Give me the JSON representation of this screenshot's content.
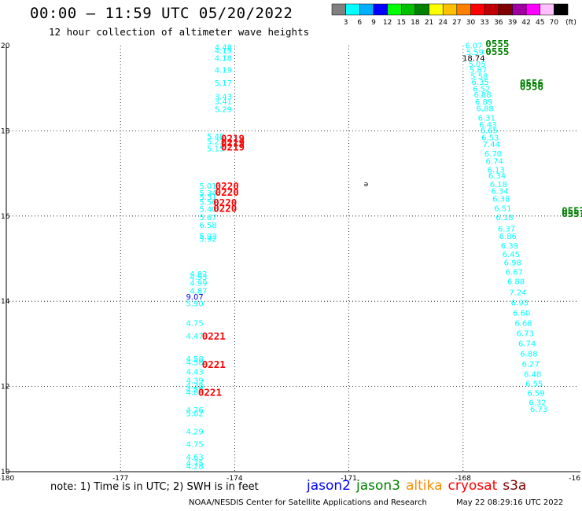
{
  "header": {
    "title": "00:00 — 11:59 UTC 05/20/2022",
    "subtitle": "12 hour collection of altimeter wave heights"
  },
  "colorbar": {
    "unit": "(ft)",
    "labels": [
      "3",
      "6",
      "9",
      "12",
      "15",
      "18",
      "21",
      "24",
      "27",
      "30",
      "33",
      "36",
      "39",
      "42",
      "45",
      "70"
    ],
    "colors": [
      "#808080",
      "#00ffff",
      "#00b0ff",
      "#0000ff",
      "#00ff00",
      "#00c000",
      "#008000",
      "#ffff00",
      "#ffc000",
      "#ff8000",
      "#ff0000",
      "#c00000",
      "#800000",
      "#a000a0",
      "#ff00ff",
      "#ffc0ff",
      "#000000"
    ]
  },
  "map": {
    "xaxis": {
      "ticks": [
        "-180",
        "-177",
        "-174",
        "-171",
        "-168",
        "-16"
      ]
    },
    "yaxis": {
      "ticks": [
        "20",
        "18",
        "16",
        "14",
        "12",
        "10"
      ]
    },
    "island_marker": "ə"
  },
  "chart_data": {
    "type": "scatter",
    "xlabel": "",
    "ylabel": "",
    "xlim": [
      -180,
      -165
    ],
    "ylim": [
      10,
      20
    ],
    "grid": true,
    "tracks": [
      {
        "color": "#00ffff",
        "lon": -174.3,
        "labels": [
          {
            "lat": 19.9,
            "v": "4.48"
          },
          {
            "lat": 19.82,
            "v": "4.19"
          },
          {
            "lat": 19.64,
            "v": "4.18"
          },
          {
            "lat": 19.36,
            "v": "4.19"
          },
          {
            "lat": 19.06,
            "v": "5.17"
          },
          {
            "lat": 18.74,
            "v": "3.43"
          },
          {
            "lat": 18.63,
            "v": "3.41"
          },
          {
            "lat": 18.44,
            "v": "5.29"
          }
        ]
      },
      {
        "color": "#00ffff",
        "lon": -174.5,
        "labels": [
          {
            "lat": 17.8,
            "v": "5.48"
          },
          {
            "lat": 17.68,
            "v": "5.23"
          },
          {
            "lat": 17.52,
            "v": "5.15"
          }
        ]
      },
      {
        "color": "#00ffff",
        "lon": -174.7,
        "labels": [
          {
            "lat": 16.64,
            "v": "5.01"
          },
          {
            "lat": 16.48,
            "v": "5.34"
          },
          {
            "lat": 16.38,
            "v": "5.31"
          },
          {
            "lat": 16.26,
            "v": "5.56"
          },
          {
            "lat": 16.1,
            "v": "5.40"
          },
          {
            "lat": 15.9,
            "v": "5.67"
          },
          {
            "lat": 15.72,
            "v": "6.58"
          },
          {
            "lat": 15.46,
            "v": "5.93"
          },
          {
            "lat": 15.4,
            "v": "5.92"
          }
        ]
      },
      {
        "color": "#00ffff",
        "lon": -174.95,
        "labels": [
          {
            "lat": 14.58,
            "v": "4.82"
          },
          {
            "lat": 14.5,
            "v": "4.93"
          },
          {
            "lat": 14.36,
            "v": "4.99"
          },
          {
            "lat": 14.18,
            "v": "4.87"
          }
        ]
      },
      {
        "color": "#0000ff",
        "lon": -175.05,
        "labels": [
          {
            "lat": 14.04,
            "v": "9.07"
          }
        ]
      },
      {
        "color": "#00ffff",
        "lon": -175.05,
        "labels": [
          {
            "lat": 13.88,
            "v": "5.90"
          },
          {
            "lat": 13.42,
            "v": "4.75"
          },
          {
            "lat": 13.12,
            "v": "4.47"
          },
          {
            "lat": 12.58,
            "v": "4.58"
          },
          {
            "lat": 12.5,
            "v": "4.58"
          },
          {
            "lat": 12.28,
            "v": "4.43"
          },
          {
            "lat": 12.08,
            "v": "4.39"
          },
          {
            "lat": 11.96,
            "v": "4.38"
          },
          {
            "lat": 11.86,
            "v": "4.58"
          },
          {
            "lat": 11.8,
            "v": "4.88"
          },
          {
            "lat": 11.38,
            "v": "4.76"
          },
          {
            "lat": 11.3,
            "v": "5.02"
          },
          {
            "lat": 10.88,
            "v": "4.29"
          },
          {
            "lat": 10.58,
            "v": "4.75"
          },
          {
            "lat": 10.28,
            "v": "4.63"
          },
          {
            "lat": 10.14,
            "v": "4.75"
          },
          {
            "lat": 10.06,
            "v": "4.28"
          }
        ]
      },
      {
        "color": "#00ffff",
        "lon": -167.72,
        "labels": [
          {
            "lat": 19.94,
            "v": "6.07"
          },
          {
            "lat": 19.78,
            "v": "5.59"
          },
          {
            "lat": 19.5,
            "v": "5.05"
          },
          {
            "lat": 19.36,
            "v": "5.87"
          },
          {
            "lat": 19.22,
            "v": "5.58"
          },
          {
            "lat": 19.08,
            "v": "6.35"
          },
          {
            "lat": 18.92,
            "v": "6.52"
          },
          {
            "lat": 18.78,
            "v": "6.88"
          },
          {
            "lat": 18.62,
            "v": "6.89"
          },
          {
            "lat": 18.46,
            "v": "6.88"
          },
          {
            "lat": 18.24,
            "v": "6.31"
          },
          {
            "lat": 18.08,
            "v": "6.43"
          },
          {
            "lat": 17.94,
            "v": "6.65"
          },
          {
            "lat": 17.78,
            "v": "6.53"
          },
          {
            "lat": 17.62,
            "v": "7.44"
          },
          {
            "lat": 17.4,
            "v": "6.70"
          },
          {
            "lat": 17.22,
            "v": "6.74"
          },
          {
            "lat": 17.02,
            "v": "6.13"
          },
          {
            "lat": 16.88,
            "v": "6.34"
          },
          {
            "lat": 16.68,
            "v": "6.18"
          },
          {
            "lat": 16.52,
            "v": "6.34"
          },
          {
            "lat": 16.34,
            "v": "6.38"
          },
          {
            "lat": 16.12,
            "v": "6.51"
          },
          {
            "lat": 15.9,
            "v": "6.18"
          },
          {
            "lat": 15.64,
            "v": "6.37"
          },
          {
            "lat": 15.46,
            "v": "6.86"
          },
          {
            "lat": 15.24,
            "v": "6.39"
          },
          {
            "lat": 15.04,
            "v": "6.45"
          },
          {
            "lat": 14.84,
            "v": "6.98"
          },
          {
            "lat": 14.62,
            "v": "6.67"
          },
          {
            "lat": 14.4,
            "v": "6.88"
          },
          {
            "lat": 14.14,
            "v": "7.24"
          },
          {
            "lat": 13.9,
            "v": "6.93"
          },
          {
            "lat": 13.66,
            "v": "6.60"
          },
          {
            "lat": 13.42,
            "v": "6.68"
          },
          {
            "lat": 13.18,
            "v": "6.73"
          },
          {
            "lat": 12.94,
            "v": "6.74"
          },
          {
            "lat": 12.7,
            "v": "6.88"
          },
          {
            "lat": 12.46,
            "v": "6.27"
          },
          {
            "lat": 12.22,
            "v": "6.48"
          },
          {
            "lat": 12.0,
            "v": "6.55"
          },
          {
            "lat": 11.78,
            "v": "6.59"
          },
          {
            "lat": 11.56,
            "v": "6.32"
          },
          {
            "lat": 11.4,
            "v": "6.73"
          }
        ]
      },
      {
        "color": "#000000",
        "lon": -167.78,
        "labels": [
          {
            "lat": 19.64,
            "v": "18.74"
          }
        ]
      }
    ],
    "passes": [
      {
        "name": "0555",
        "color": "#008000",
        "lon": -167.1,
        "lat": 19.96
      },
      {
        "name": "0555",
        "color": "#008000",
        "lon": -167.1,
        "lat": 19.78
      },
      {
        "name": "0556",
        "color": "#008000",
        "lon": -166.2,
        "lat": 19.04
      },
      {
        "name": "0556",
        "color": "#008000",
        "lon": -166.2,
        "lat": 18.96
      },
      {
        "name": "0557",
        "color": "#008000",
        "lon": -165.1,
        "lat": 16.04
      },
      {
        "name": "0557",
        "color": "#008000",
        "lon": -165.1,
        "lat": 15.98
      },
      {
        "name": "0219",
        "color": "#ff0000",
        "lon": -174.05,
        "lat": 17.74
      },
      {
        "name": "0219",
        "color": "#ff0000",
        "lon": -174.05,
        "lat": 17.64
      },
      {
        "name": "0219",
        "color": "#ff0000",
        "lon": -174.05,
        "lat": 17.54
      },
      {
        "name": "0220",
        "color": "#ff0000",
        "lon": -174.2,
        "lat": 16.62
      },
      {
        "name": "0220",
        "color": "#ff0000",
        "lon": -174.2,
        "lat": 16.48
      },
      {
        "name": "0220",
        "color": "#ff0000",
        "lon": -174.25,
        "lat": 16.24
      },
      {
        "name": "0220",
        "color": "#ff0000",
        "lon": -174.25,
        "lat": 16.1
      },
      {
        "name": "0221",
        "color": "#ff0000",
        "lon": -174.55,
        "lat": 13.1
      },
      {
        "name": "0221",
        "color": "#ff0000",
        "lon": -174.55,
        "lat": 12.44
      },
      {
        "name": "0221",
        "color": "#ff0000",
        "lon": -174.65,
        "lat": 11.78
      }
    ],
    "island": {
      "lon": -170.55,
      "lat": 16.7
    }
  },
  "footer": {
    "note": "note: 1) Time is in UTC; 2) SWH is in feet",
    "legend": [
      {
        "label": "jason2",
        "color": "#0000ff"
      },
      {
        "label": "jason3",
        "color": "#008000"
      },
      {
        "label": "altika",
        "color": "#ff8c00"
      },
      {
        "label": "cryosat",
        "color": "#ff0000"
      },
      {
        "label": "s3a",
        "color": "#800000"
      }
    ],
    "credit": "NOAA/NESDIS Center for Satellite Applications and Research",
    "timestamp": "May 22 08:29:16 UTC 2022"
  }
}
